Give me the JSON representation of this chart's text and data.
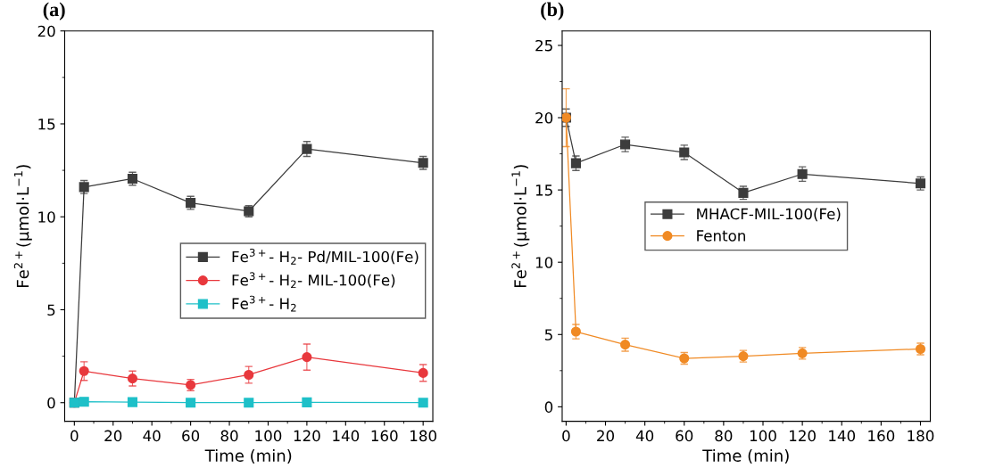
{
  "chart_data": [
    {
      "type": "line",
      "title": "(a)",
      "xlabel": "Time (min)",
      "ylabel": "Fe$^{2+}$(μmol·L$^{−1}$)",
      "x": [
        0,
        5,
        30,
        60,
        90,
        120,
        180
      ],
      "xlim": [
        -5,
        185
      ],
      "xticks": [
        0,
        20,
        40,
        60,
        80,
        100,
        120,
        140,
        160,
        180
      ],
      "ylim": [
        -1,
        20
      ],
      "yticks": [
        0,
        5,
        10,
        15,
        20
      ],
      "grid": false,
      "legend": "center right",
      "line_style": "solid",
      "series": [
        {
          "name": "Fe$^{3+}$- H$_{2}$- Pd/MIL-100(Fe)",
          "color": "#3c3c3c",
          "marker": "square",
          "values": [
            0,
            11.6,
            12.05,
            10.75,
            10.3,
            13.65,
            12.9
          ],
          "errors": [
            null,
            0.35,
            0.35,
            0.35,
            0.3,
            0.4,
            0.35
          ]
        },
        {
          "name": "Fe$^{3+}$- H$_{2}$- MIL-100(Fe)",
          "color": "#e8383d",
          "marker": "circle",
          "values": [
            0,
            1.7,
            1.3,
            0.95,
            1.5,
            2.45,
            1.6
          ],
          "errors": [
            null,
            0.5,
            0.4,
            0.3,
            0.45,
            0.7,
            0.45
          ]
        },
        {
          "name": "Fe$^{3+}$- H$_{2}$",
          "color": "#1ec0c8",
          "marker": "square",
          "values": [
            0,
            0.05,
            0.03,
            0,
            0,
            0.02,
            0
          ]
        }
      ]
    },
    {
      "type": "line",
      "title": "(b)",
      "xlabel": "Time (min)",
      "ylabel": "Fe$^{2+}$(μmol·L$^{−1}$)",
      "x": [
        0,
        5,
        30,
        60,
        90,
        120,
        180
      ],
      "xlim": [
        -2,
        185
      ],
      "xticks": [
        0,
        20,
        40,
        60,
        80,
        100,
        120,
        140,
        160,
        180
      ],
      "ylim": [
        -1,
        26
      ],
      "yticks": [
        0,
        5,
        10,
        15,
        20,
        25
      ],
      "grid": false,
      "legend": "center",
      "line_style": "solid",
      "series": [
        {
          "name": "MHACF-MIL-100(Fe)",
          "color": "#3c3c3c",
          "marker": "square",
          "values": [
            20,
            16.85,
            18.15,
            17.6,
            14.8,
            16.1,
            15.45
          ],
          "errors": [
            0.6,
            0.5,
            0.5,
            0.5,
            0.45,
            0.5,
            0.45
          ]
        },
        {
          "name": "Fenton",
          "color": "#f08a24",
          "marker": "circle",
          "values": [
            20,
            5.2,
            4.3,
            3.35,
            3.5,
            3.7,
            4.0
          ],
          "errors": [
            2,
            0.5,
            0.45,
            0.4,
            0.4,
            0.4,
            0.4
          ]
        }
      ]
    }
  ]
}
